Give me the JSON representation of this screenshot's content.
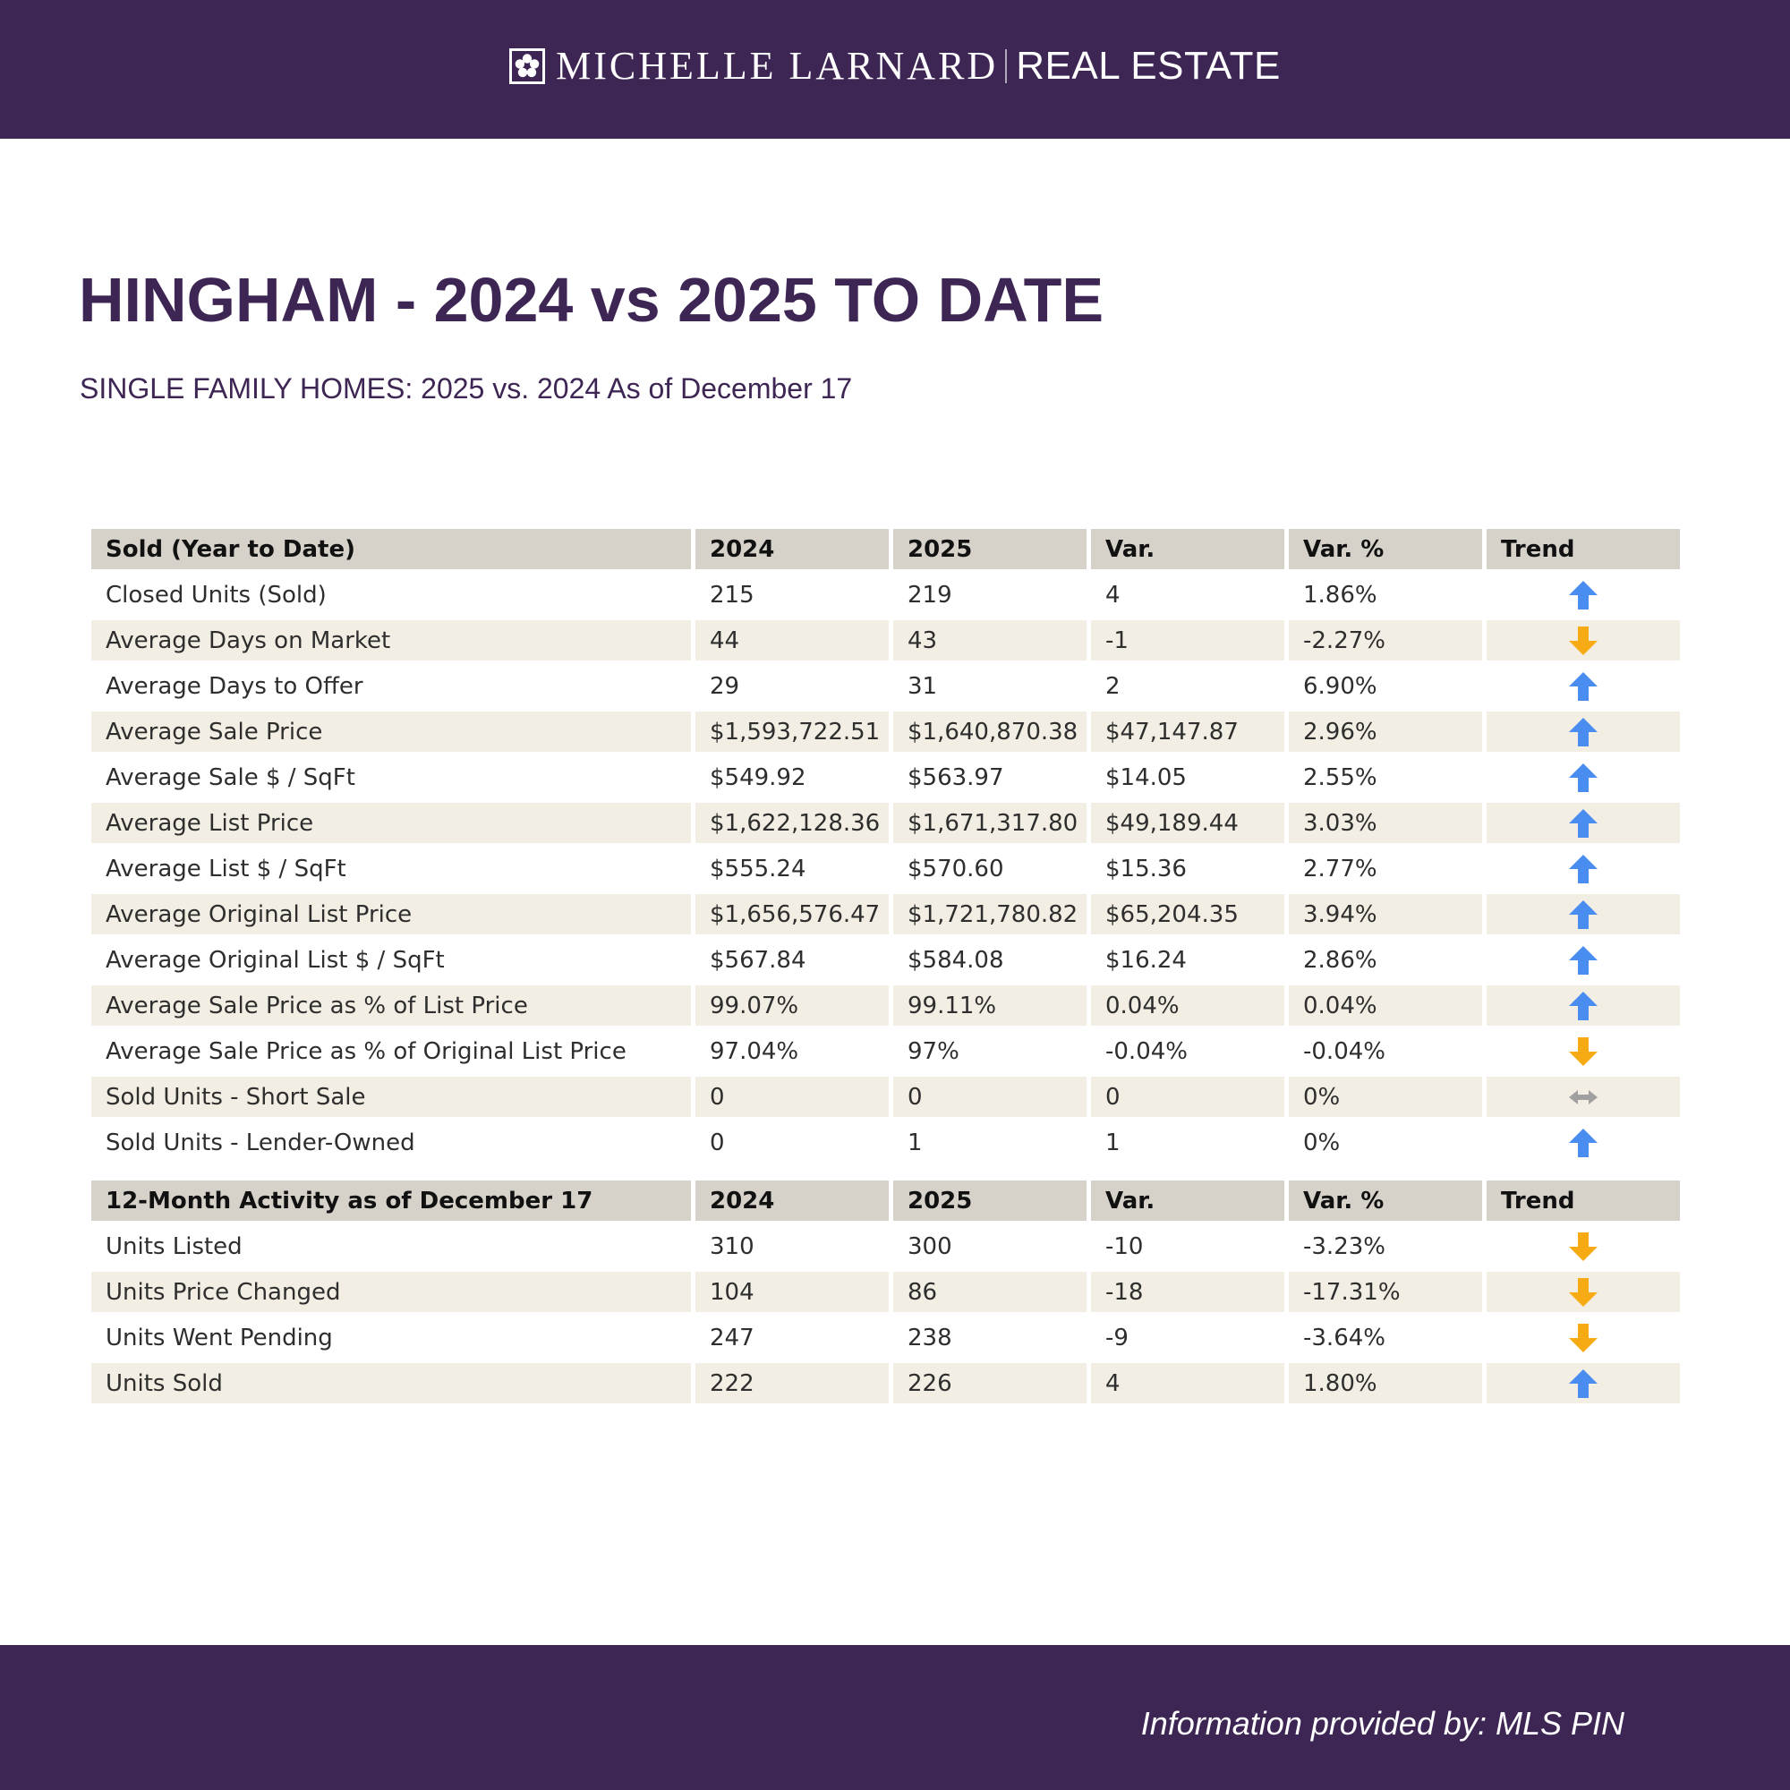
{
  "header": {
    "brand_name": "MICHELLE LARNARD",
    "brand_tag": "REAL ESTATE"
  },
  "title": "HINGHAM - 2024 vs 2025 TO DATE",
  "subtitle": "SINGLE FAMILY HOMES: 2025 vs. 2024 As of December 17",
  "colors": {
    "brand_purple": "#3e2654",
    "header_cell": "#d6d2ca",
    "stripe": "#f3eee3",
    "trend_up": "#4a8df0",
    "trend_down": "#f6ab14",
    "trend_flat": "#a0a0a0"
  },
  "sold_table": {
    "headers": [
      "Sold (Year to Date)",
      "2024",
      "2025",
      "Var.",
      "Var. %",
      "Trend"
    ],
    "rows": [
      {
        "label": "Closed Units (Sold)",
        "y2024": "215",
        "y2025": "219",
        "var": "4",
        "var_pct": "1.86%",
        "trend": "up"
      },
      {
        "label": "Average Days on Market",
        "y2024": "44",
        "y2025": "43",
        "var": "-1",
        "var_pct": "-2.27%",
        "trend": "down"
      },
      {
        "label": "Average Days to Offer",
        "y2024": "29",
        "y2025": "31",
        "var": "2",
        "var_pct": "6.90%",
        "trend": "up"
      },
      {
        "label": "Average Sale Price",
        "y2024": "$1,593,722.51",
        "y2025": "$1,640,870.38",
        "var": "$47,147.87",
        "var_pct": "2.96%",
        "trend": "up"
      },
      {
        "label": "Average Sale $ / SqFt",
        "y2024": "$549.92",
        "y2025": "$563.97",
        "var": "$14.05",
        "var_pct": "2.55%",
        "trend": "up"
      },
      {
        "label": "Average List Price",
        "y2024": "$1,622,128.36",
        "y2025": "$1,671,317.80",
        "var": "$49,189.44",
        "var_pct": "3.03%",
        "trend": "up"
      },
      {
        "label": "Average List $ / SqFt",
        "y2024": "$555.24",
        "y2025": "$570.60",
        "var": "$15.36",
        "var_pct": "2.77%",
        "trend": "up"
      },
      {
        "label": "Average Original List Price",
        "y2024": "$1,656,576.47",
        "y2025": "$1,721,780.82",
        "var": "$65,204.35",
        "var_pct": "3.94%",
        "trend": "up"
      },
      {
        "label": "Average Original List $ / SqFt",
        "y2024": "$567.84",
        "y2025": "$584.08",
        "var": "$16.24",
        "var_pct": "2.86%",
        "trend": "up"
      },
      {
        "label": "Average Sale Price as % of List Price",
        "y2024": "99.07%",
        "y2025": "99.11%",
        "var": "0.04%",
        "var_pct": "0.04%",
        "trend": "up"
      },
      {
        "label": "Average Sale Price as % of Original List Price",
        "y2024": "97.04%",
        "y2025": "97%",
        "var": "-0.04%",
        "var_pct": "-0.04%",
        "trend": "down"
      },
      {
        "label": "Sold Units - Short Sale",
        "y2024": "0",
        "y2025": "0",
        "var": "0",
        "var_pct": "0%",
        "trend": "flat"
      },
      {
        "label": "Sold Units - Lender-Owned",
        "y2024": "0",
        "y2025": "1",
        "var": "1",
        "var_pct": "0%",
        "trend": "up"
      }
    ]
  },
  "activity_table": {
    "headers": [
      "12-Month Activity as of December 17",
      "2024",
      "2025",
      "Var.",
      "Var. %",
      "Trend"
    ],
    "rows": [
      {
        "label": "Units Listed",
        "y2024": "310",
        "y2025": "300",
        "var": "-10",
        "var_pct": "-3.23%",
        "trend": "down"
      },
      {
        "label": "Units Price Changed",
        "y2024": "104",
        "y2025": "86",
        "var": "-18",
        "var_pct": "-17.31%",
        "trend": "down"
      },
      {
        "label": "Units Went Pending",
        "y2024": "247",
        "y2025": "238",
        "var": "-9",
        "var_pct": "-3.64%",
        "trend": "down"
      },
      {
        "label": "Units Sold",
        "y2024": "222",
        "y2025": "226",
        "var": "4",
        "var_pct": "1.80%",
        "trend": "up"
      }
    ]
  },
  "footer": {
    "credit": "Information provided by: MLS PIN"
  }
}
